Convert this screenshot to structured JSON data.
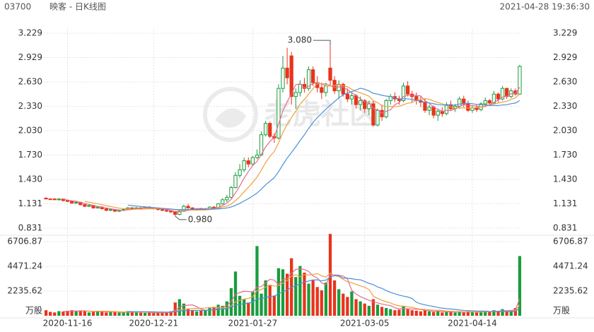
{
  "header": {
    "code": "03700",
    "title": "映客 - 日K线图",
    "datetime": "2021-04-28 19:36:30"
  },
  "watermark": "老虎社区",
  "chart_data": {
    "type": "candlestick",
    "categories": [
      null,
      null,
      null,
      null,
      null,
      "2020-11-16",
      null,
      null,
      null,
      null,
      null,
      null,
      null,
      null,
      null,
      null,
      null,
      null,
      null,
      null,
      null,
      null,
      null,
      null,
      null,
      "2020-12-21",
      null,
      null,
      null,
      null,
      null,
      null,
      null,
      null,
      null,
      null,
      null,
      null,
      null,
      null,
      null,
      null,
      null,
      null,
      null,
      null,
      null,
      null,
      "2021-01-27",
      null,
      null,
      null,
      null,
      null,
      null,
      null,
      null,
      null,
      null,
      null,
      null,
      null,
      null,
      null,
      null,
      null,
      null,
      null,
      null,
      null,
      null,
      null,
      null,
      null,
      "2021-03-05",
      null,
      null,
      null,
      null,
      null,
      null,
      null,
      null,
      null,
      null,
      null,
      null,
      null,
      null,
      null,
      null,
      null,
      null,
      null,
      null,
      null,
      null,
      null,
      null,
      "2021-04-14",
      null,
      null,
      null,
      null,
      null,
      null,
      null,
      null,
      null,
      null,
      null
    ],
    "candles": [
      [
        1.2,
        1.21,
        1.19,
        1.19
      ],
      [
        1.19,
        1.2,
        1.18,
        1.19
      ],
      [
        1.19,
        1.2,
        1.18,
        1.18
      ],
      [
        1.18,
        1.2,
        1.17,
        1.19
      ],
      [
        1.19,
        1.19,
        1.16,
        1.17
      ],
      [
        1.17,
        1.18,
        1.15,
        1.16
      ],
      [
        1.16,
        1.17,
        1.13,
        1.14
      ],
      [
        1.14,
        1.16,
        1.13,
        1.15
      ],
      [
        1.15,
        1.15,
        1.11,
        1.12
      ],
      [
        1.12,
        1.13,
        1.09,
        1.1
      ],
      [
        1.1,
        1.12,
        1.09,
        1.11
      ],
      [
        1.11,
        1.11,
        1.07,
        1.08
      ],
      [
        1.08,
        1.1,
        1.07,
        1.09
      ],
      [
        1.09,
        1.1,
        1.06,
        1.07
      ],
      [
        1.07,
        1.08,
        1.04,
        1.05
      ],
      [
        1.05,
        1.07,
        1.04,
        1.06
      ],
      [
        1.06,
        1.06,
        1.03,
        1.04
      ],
      [
        1.04,
        1.06,
        1.03,
        1.05
      ],
      [
        1.05,
        1.07,
        1.04,
        1.06
      ],
      [
        1.06,
        1.09,
        1.05,
        1.08
      ],
      [
        1.08,
        1.09,
        1.06,
        1.07
      ],
      [
        1.07,
        1.09,
        1.06,
        1.08
      ],
      [
        1.08,
        1.09,
        1.07,
        1.08
      ],
      [
        1.08,
        1.1,
        1.07,
        1.09
      ],
      [
        1.09,
        1.1,
        1.07,
        1.08
      ],
      [
        1.08,
        1.09,
        1.06,
        1.07
      ],
      [
        1.07,
        1.08,
        1.05,
        1.06
      ],
      [
        1.06,
        1.07,
        1.04,
        1.05
      ],
      [
        1.05,
        1.06,
        1.03,
        1.04
      ],
      [
        1.04,
        1.05,
        1.02,
        1.03
      ],
      [
        1.03,
        1.04,
        0.98,
        1.0
      ],
      [
        1.0,
        1.05,
        0.99,
        1.04
      ],
      [
        1.04,
        1.12,
        1.03,
        1.1
      ],
      [
        1.1,
        1.13,
        1.07,
        1.08
      ],
      [
        1.08,
        1.09,
        1.05,
        1.06
      ],
      [
        1.06,
        1.08,
        1.05,
        1.07
      ],
      [
        1.07,
        1.08,
        1.05,
        1.06
      ],
      [
        1.06,
        1.08,
        1.05,
        1.07
      ],
      [
        1.07,
        1.1,
        1.06,
        1.09
      ],
      [
        1.09,
        1.1,
        1.07,
        1.08
      ],
      [
        1.08,
        1.14,
        1.08,
        1.13
      ],
      [
        1.13,
        1.2,
        1.12,
        1.18
      ],
      [
        1.18,
        1.24,
        1.15,
        1.21
      ],
      [
        1.21,
        1.35,
        1.2,
        1.33
      ],
      [
        1.33,
        1.52,
        1.32,
        1.48
      ],
      [
        1.48,
        1.62,
        1.45,
        1.55
      ],
      [
        1.55,
        1.7,
        1.52,
        1.66
      ],
      [
        1.66,
        1.7,
        1.58,
        1.62
      ],
      [
        1.62,
        1.72,
        1.6,
        1.7
      ],
      [
        1.7,
        1.8,
        1.68,
        1.73
      ],
      [
        1.73,
        2.02,
        1.72,
        1.98
      ],
      [
        1.98,
        2.15,
        1.96,
        2.12
      ],
      [
        2.12,
        2.14,
        1.94,
        1.96
      ],
      [
        1.96,
        2.0,
        1.88,
        1.94
      ],
      [
        1.94,
        2.6,
        1.92,
        2.55
      ],
      [
        2.55,
        2.95,
        2.5,
        2.8
      ],
      [
        2.8,
        3.05,
        2.6,
        2.68
      ],
      [
        2.95,
        3.0,
        2.35,
        2.45
      ],
      [
        2.45,
        2.55,
        2.3,
        2.5
      ],
      [
        2.5,
        2.65,
        2.45,
        2.6
      ],
      [
        2.6,
        2.68,
        2.5,
        2.55
      ],
      [
        2.55,
        2.82,
        2.52,
        2.78
      ],
      [
        2.78,
        2.82,
        2.58,
        2.62
      ],
      [
        2.62,
        2.7,
        2.5,
        2.56
      ],
      [
        2.56,
        2.62,
        2.42,
        2.5
      ],
      [
        2.5,
        2.62,
        2.45,
        2.58
      ],
      [
        2.8,
        3.08,
        2.58,
        2.65
      ],
      [
        2.65,
        2.7,
        2.48,
        2.52
      ],
      [
        2.52,
        2.65,
        2.42,
        2.6
      ],
      [
        2.6,
        2.62,
        2.45,
        2.48
      ],
      [
        2.48,
        2.55,
        2.38,
        2.42
      ],
      [
        2.42,
        2.5,
        2.35,
        2.46
      ],
      [
        2.46,
        2.48,
        2.3,
        2.35
      ],
      [
        2.35,
        2.45,
        2.28,
        2.4
      ],
      [
        2.4,
        2.42,
        2.25,
        2.3
      ],
      [
        2.3,
        2.4,
        2.22,
        2.36
      ],
      [
        2.36,
        2.4,
        2.08,
        2.1
      ],
      [
        2.1,
        2.3,
        2.08,
        2.28
      ],
      [
        2.28,
        2.35,
        2.15,
        2.2
      ],
      [
        2.2,
        2.42,
        2.18,
        2.4
      ],
      [
        2.4,
        2.48,
        2.35,
        2.45
      ],
      [
        2.45,
        2.5,
        2.38,
        2.42
      ],
      [
        2.42,
        2.46,
        2.35,
        2.4
      ],
      [
        2.4,
        2.62,
        2.38,
        2.58
      ],
      [
        2.58,
        2.64,
        2.45,
        2.48
      ],
      [
        2.48,
        2.52,
        2.38,
        2.45
      ],
      [
        2.45,
        2.5,
        2.35,
        2.4
      ],
      [
        2.4,
        2.45,
        2.32,
        2.38
      ],
      [
        2.38,
        2.42,
        2.25,
        2.28
      ],
      [
        2.28,
        2.35,
        2.22,
        2.32
      ],
      [
        2.32,
        2.34,
        2.18,
        2.22
      ],
      [
        2.22,
        2.3,
        2.15,
        2.27
      ],
      [
        2.27,
        2.32,
        2.2,
        2.24
      ],
      [
        2.24,
        2.38,
        2.22,
        2.35
      ],
      [
        2.35,
        2.4,
        2.28,
        2.3
      ],
      [
        2.3,
        2.36,
        2.26,
        2.33
      ],
      [
        2.33,
        2.45,
        2.3,
        2.42
      ],
      [
        2.42,
        2.46,
        2.32,
        2.36
      ],
      [
        2.36,
        2.4,
        2.26,
        2.28
      ],
      [
        2.28,
        2.34,
        2.25,
        2.31
      ],
      [
        2.31,
        2.35,
        2.26,
        2.29
      ],
      [
        2.29,
        2.38,
        2.27,
        2.36
      ],
      [
        2.36,
        2.44,
        2.33,
        2.4
      ],
      [
        2.4,
        2.42,
        2.34,
        2.37
      ],
      [
        2.37,
        2.52,
        2.36,
        2.48
      ],
      [
        2.48,
        2.5,
        2.38,
        2.42
      ],
      [
        2.42,
        2.58,
        2.4,
        2.55
      ],
      [
        2.55,
        2.56,
        2.42,
        2.45
      ],
      [
        2.45,
        2.55,
        2.43,
        2.52
      ],
      [
        2.52,
        2.55,
        2.46,
        2.48
      ],
      [
        2.48,
        2.84,
        2.47,
        2.82
      ]
    ],
    "volumes": [
      500,
      350,
      300,
      420,
      380,
      450,
      500,
      400,
      480,
      420,
      300,
      350,
      450,
      380,
      300,
      320,
      350,
      280,
      300,
      420,
      350,
      300,
      280,
      260,
      300,
      250,
      280,
      300,
      350,
      400,
      1200,
      1500,
      1100,
      600,
      500,
      400,
      450,
      500,
      700,
      800,
      1000,
      900,
      1300,
      2500,
      4000,
      1800,
      1500,
      1200,
      2200,
      6300,
      2000,
      3200,
      2800,
      1800,
      4300,
      4200,
      3800,
      5200,
      3500,
      4500,
      3900,
      2900,
      3200,
      2600,
      2300,
      3000,
      7400,
      3200,
      2400,
      2000,
      1700,
      2200,
      1500,
      1300,
      1100,
      900,
      1500,
      1000,
      800,
      700,
      600,
      500,
      550,
      900,
      600,
      500,
      450,
      400,
      500,
      400,
      350,
      400,
      300,
      350,
      400,
      300,
      350,
      300,
      400,
      350,
      300,
      400,
      450,
      350,
      500,
      400,
      600,
      450,
      500,
      700,
      5400
    ],
    "up_color": "#1a9c3e",
    "down_color": "#e8341c",
    "moving_averages": [
      {
        "period": 5,
        "color": "#e36b8c"
      },
      {
        "period": 10,
        "color": "#f0a040"
      },
      {
        "period": 20,
        "color": "#4a90d9"
      }
    ],
    "ylim": [
      0.831,
      3.229
    ],
    "yticks": [
      0.831,
      1.131,
      {
        "value": 1.43,
        "label": "1.430"
      },
      {
        "value": 1.73,
        "label": "1.730"
      },
      {
        "value": 2.03,
        "label": "2.030"
      },
      {
        "value": 2.33,
        "label": "2.330"
      },
      {
        "value": 2.63,
        "label": "2.630"
      },
      2.929,
      3.229
    ],
    "y2lim": [
      0,
      6706.87
    ],
    "y2ticks": [
      2235.62,
      4471.24,
      6706.87
    ],
    "y2_unit": "万股",
    "high_label": {
      "value": 3.08,
      "label": "3.080"
    },
    "low_label": {
      "value": 0.98,
      "label": "0.980"
    },
    "grid": true
  }
}
